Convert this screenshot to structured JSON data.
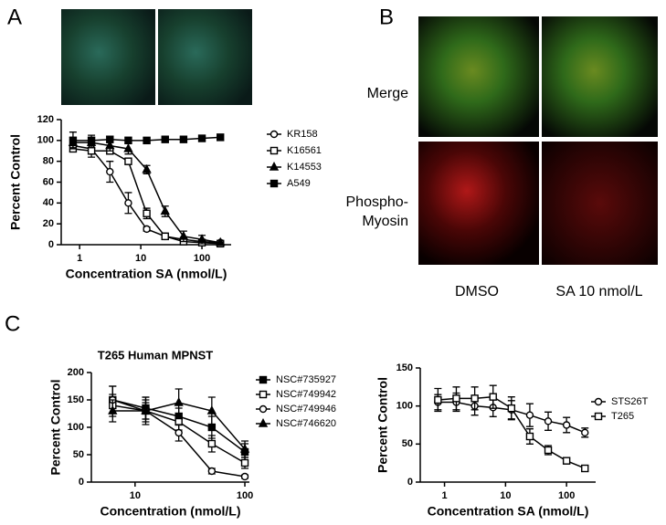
{
  "panels": {
    "a": "A",
    "b": "B",
    "c": "C"
  },
  "image_labels": {
    "merge": "Merge",
    "phospho": [
      "Phospho-",
      "Myosin"
    ],
    "dmso": "DMSO",
    "sa": "SA 10 nmol/L"
  },
  "chart_data": [
    {
      "type": "line",
      "xlabel": "Concentration SA (nmol/L)",
      "ylabel": "Percent Control",
      "log_x": true,
      "x": [
        0.78,
        1.56,
        3.125,
        6.25,
        12.5,
        25,
        50,
        100,
        200
      ],
      "xlim": [
        0.5,
        300
      ],
      "xticks": [
        1,
        10,
        100
      ],
      "ylim": [
        0,
        120
      ],
      "yticks": [
        0,
        20,
        40,
        60,
        80,
        100,
        120
      ],
      "series": [
        {
          "name": "KR158",
          "color": "#000000",
          "marker": "circle-open",
          "values": [
            95,
            92,
            70,
            40,
            15,
            8,
            5,
            3,
            2
          ],
          "errors": [
            5,
            8,
            10,
            10,
            2,
            2,
            2,
            2,
            1
          ]
        },
        {
          "name": "K16561",
          "color": "#000000",
          "marker": "square-open",
          "values": [
            92,
            90,
            90,
            80,
            30,
            8,
            3,
            2,
            1
          ],
          "errors": [
            3,
            3,
            3,
            3,
            5,
            3,
            2,
            2,
            1
          ]
        },
        {
          "name": "K14553",
          "color": "#000000",
          "marker": "triangle",
          "values": [
            98,
            98,
            95,
            92,
            72,
            32,
            8,
            5,
            2
          ],
          "errors": [
            5,
            5,
            5,
            5,
            4,
            5,
            5,
            4,
            2
          ]
        },
        {
          "name": "A549",
          "color": "#000000",
          "marker": "square",
          "values": [
            100,
            100,
            101,
            100,
            100,
            101,
            101,
            102,
            103
          ],
          "errors": [
            8,
            5,
            3,
            3,
            2,
            2,
            2,
            2,
            3
          ]
        }
      ]
    },
    {
      "type": "line",
      "title": "T265 Human MPNST",
      "xlabel": "Concentration (nmol/L)",
      "ylabel": "Percent Control",
      "log_x": true,
      "x": [
        6.25,
        12.5,
        25,
        50,
        100
      ],
      "xlim": [
        4,
        110
      ],
      "xticks": [
        10,
        100
      ],
      "ylim": [
        0,
        200
      ],
      "yticks": [
        0,
        50,
        100,
        150,
        200
      ],
      "series": [
        {
          "name": "NSC#735927",
          "color": "#000000",
          "marker": "square",
          "values": [
            150,
            135,
            120,
            100,
            55
          ],
          "errors": [
            25,
            20,
            15,
            20,
            15
          ]
        },
        {
          "name": "NSC#749942",
          "color": "#000000",
          "marker": "square-open",
          "values": [
            140,
            130,
            110,
            70,
            35
          ],
          "errors": [
            20,
            15,
            15,
            15,
            10
          ]
        },
        {
          "name": "NSC#749946",
          "color": "#000000",
          "marker": "circle-open",
          "values": [
            150,
            130,
            90,
            20,
            10
          ],
          "errors": [
            25,
            20,
            15,
            5,
            3
          ]
        },
        {
          "name": "NSC#746620",
          "color": "#000000",
          "marker": "triangle",
          "values": [
            130,
            130,
            145,
            130,
            60
          ],
          "errors": [
            20,
            25,
            25,
            25,
            15
          ]
        }
      ]
    },
    {
      "type": "line",
      "xlabel": "Concentration SA (nmol/L)",
      "ylabel": "Percent Control",
      "log_x": true,
      "x": [
        0.78,
        1.56,
        3.125,
        6.25,
        12.5,
        25,
        50,
        100,
        200
      ],
      "xlim": [
        0.4,
        300
      ],
      "xticks": [
        1,
        10,
        100
      ],
      "ylim": [
        0,
        150
      ],
      "yticks": [
        0,
        50,
        100,
        150
      ],
      "series": [
        {
          "name": "STS26T",
          "color": "#000000",
          "marker": "circle-open",
          "values": [
            105,
            105,
            100,
            98,
            95,
            88,
            80,
            75,
            65
          ],
          "errors": [
            10,
            12,
            12,
            12,
            12,
            15,
            12,
            10,
            6
          ]
        },
        {
          "name": "T265",
          "color": "#000000",
          "marker": "square-open",
          "values": [
            108,
            110,
            110,
            112,
            97,
            60,
            42,
            28,
            18
          ],
          "errors": [
            15,
            15,
            15,
            15,
            15,
            10,
            6,
            4,
            3
          ]
        }
      ]
    }
  ]
}
